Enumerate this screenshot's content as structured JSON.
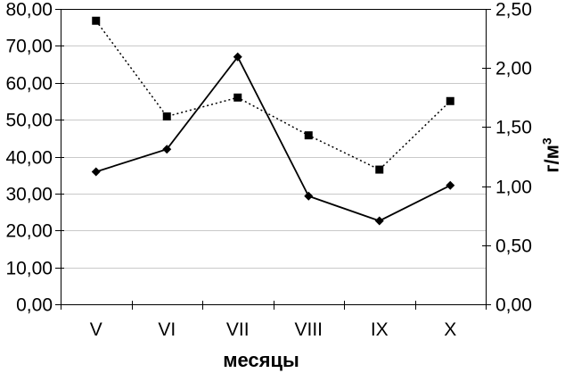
{
  "chart_data": {
    "type": "line",
    "title": "",
    "categories": [
      "V",
      "VI",
      "VII",
      "VIII",
      "IX",
      "X"
    ],
    "xlabel": "месяцы",
    "right_ylabel": {
      "text": "г/м",
      "sup": "3"
    },
    "left_axis": {
      "min": 0,
      "max": 80,
      "step": 10,
      "tick_labels": [
        "0,00",
        "10,00",
        "20,00",
        "30,00",
        "40,00",
        "50,00",
        "60,00",
        "70,00",
        "80,00"
      ]
    },
    "right_axis": {
      "min": 0,
      "max": 2.5,
      "step": 0.5,
      "tick_labels": [
        "0,00",
        "0,50",
        "1,00",
        "1,50",
        "2,00",
        "2,50"
      ]
    },
    "series": [
      {
        "name": "solid-line-diamond-markers-left-axis",
        "axis": "left",
        "line_style": "solid",
        "marker": "diamond",
        "values": [
          35.9,
          42.0,
          67.0,
          29.3,
          22.6,
          32.2
        ]
      },
      {
        "name": "dotted-line-square-markers-right-axis",
        "axis": "right",
        "line_style": "dotted",
        "marker": "square",
        "values": [
          2.4,
          1.59,
          1.75,
          1.43,
          1.14,
          1.72
        ]
      }
    ],
    "grid": true,
    "legend": "none",
    "colors": {
      "series": "#000000",
      "grid": "#c9c9c9",
      "axis": "#000000",
      "background": "#ffffff",
      "text": "#000000"
    }
  }
}
